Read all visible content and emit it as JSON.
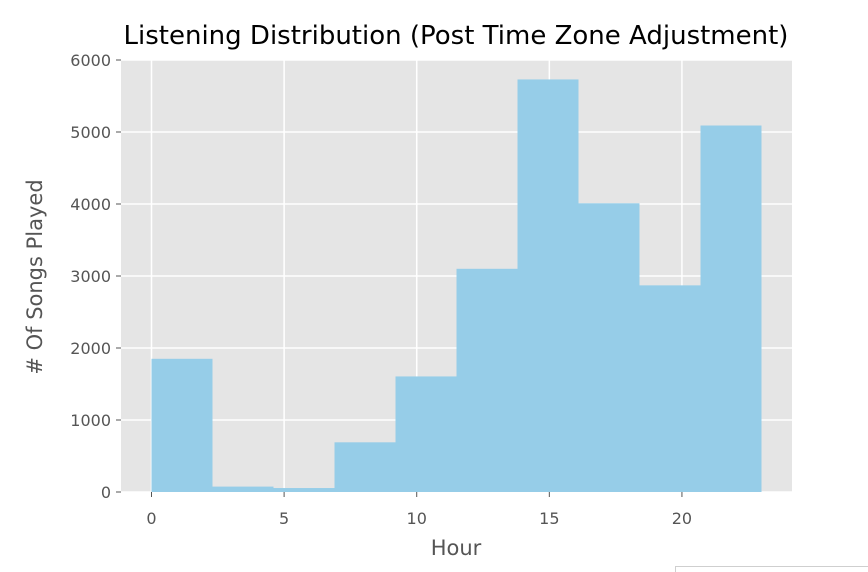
{
  "chart_data": {
    "type": "bar",
    "subtype": "histogram",
    "title": "Listening Distribution (Post Time Zone Adjustment)",
    "xlabel": "Hour",
    "ylabel": "# Of Songs Played",
    "xlim": [
      -1.15,
      24.15
    ],
    "ylim": [
      0,
      6000
    ],
    "x_ticks": [
      0,
      5,
      10,
      15,
      20
    ],
    "y_ticks": [
      0,
      1000,
      2000,
      3000,
      4000,
      5000,
      6000
    ],
    "grid": true,
    "bin_edges": [
      0,
      2.3,
      4.6,
      6.9,
      9.2,
      11.5,
      13.8,
      16.1,
      18.4,
      20.7,
      23
    ],
    "values": [
      1850,
      75,
      55,
      690,
      1605,
      3100,
      5730,
      4010,
      2870,
      5090
    ],
    "bar_color": "#96cde8",
    "plot_background": "#e5e5e5",
    "grid_color": "#ffffff"
  }
}
